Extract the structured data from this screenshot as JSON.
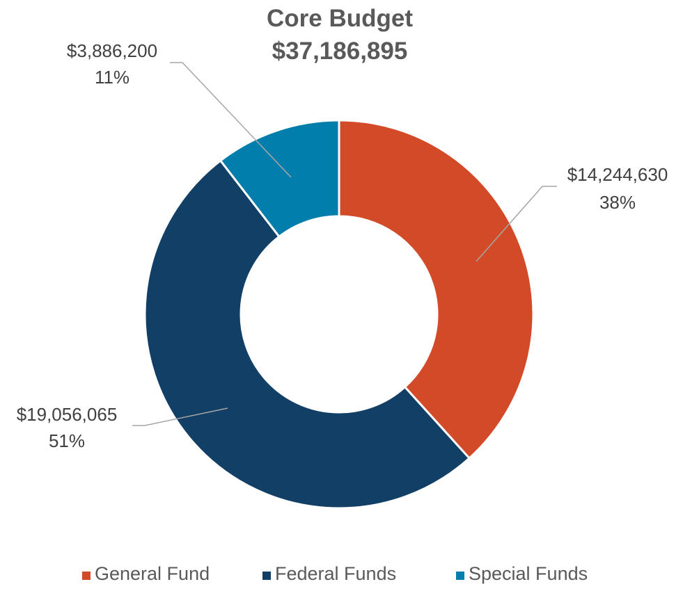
{
  "chart_data": {
    "type": "pie",
    "variant": "donut",
    "title": "Core Budget",
    "subtitle": "$37,186,895",
    "series": [
      {
        "name": "General Fund",
        "value": 14244630,
        "value_label": "$14,244,630",
        "percent_label": "38%",
        "color": "#D24A27"
      },
      {
        "name": "Federal Funds",
        "value": 19056065,
        "value_label": "$19,056,065",
        "percent_label": "51%",
        "color": "#123F66"
      },
      {
        "name": "Special Funds",
        "value": 3886200,
        "value_label": "$3,886,200",
        "percent_label": "11%",
        "color": "#017EAB"
      }
    ],
    "legend_position": "bottom"
  }
}
